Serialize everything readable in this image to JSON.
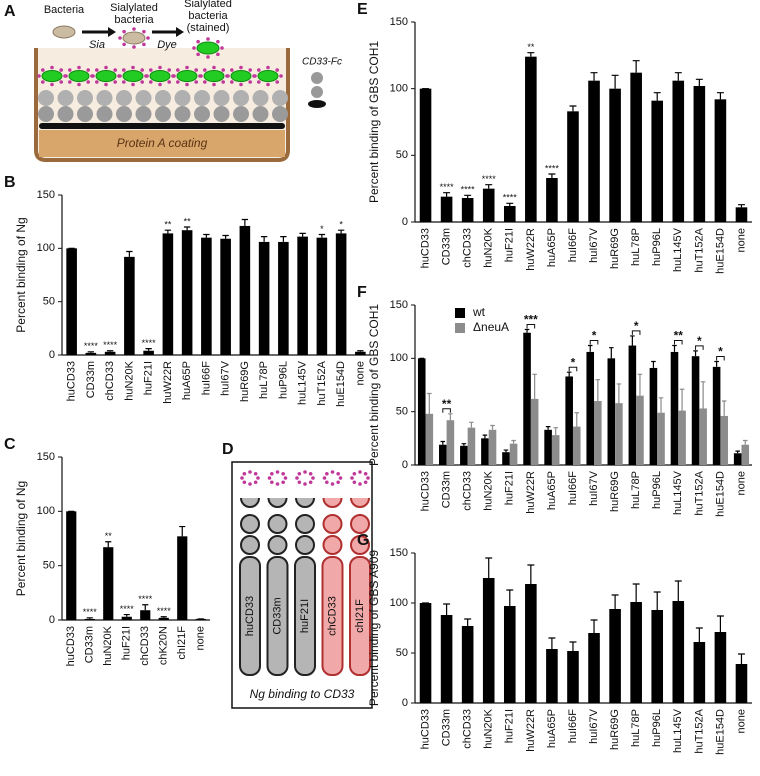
{
  "panel_a": {
    "letter": "A",
    "bacteria": "Bacteria",
    "sialylated": [
      "Sialylated",
      "bacteria"
    ],
    "stained": [
      "Sialylated",
      "bacteria",
      "(stained)"
    ],
    "sia": "Sia",
    "dye": "Dye",
    "fc": "CD33-Fc",
    "coating": "Protein A coating"
  },
  "panel_d": {
    "letter": "D",
    "constructs": [
      "huCD33",
      "CD33m",
      "huF21I",
      "chCD33",
      "chI21F"
    ],
    "caption": "Ng binding to CD33"
  },
  "chart_data": [
    {
      "type": "bar",
      "panel": "B",
      "ylabel": "Percent binding of Ng",
      "color": "#000000",
      "categories": [
        "huCD33",
        "CD33m",
        "chCD33",
        "huN20K",
        "huF21I",
        "huW22R",
        "huA65P",
        "huI66F",
        "huI67V",
        "huR69G",
        "huL78P",
        "huP96L",
        "huL145V",
        "huT152A",
        "huE154D",
        "none"
      ],
      "values": [
        100,
        2,
        3,
        92,
        4,
        114,
        117,
        110,
        109,
        121,
        106,
        106,
        111,
        110,
        114,
        3
      ],
      "errors": [
        0,
        1,
        1,
        5,
        2,
        3,
        3,
        3,
        3,
        6,
        5,
        5,
        3,
        3,
        3,
        1
      ],
      "stars": [
        null,
        "****",
        "****",
        null,
        "****",
        "**",
        "**",
        null,
        null,
        null,
        null,
        null,
        null,
        "*",
        "*",
        null
      ],
      "ylim": [
        0,
        150
      ],
      "yticks": [
        0,
        50,
        100,
        150
      ]
    },
    {
      "type": "bar",
      "panel": "C",
      "ylabel": "Percent binding of Ng",
      "color": "#000000",
      "categories": [
        "huCD33",
        "CD33m",
        "huN20K",
        "huF21I",
        "chCD33",
        "chK20N",
        "chI21F",
        "none"
      ],
      "values": [
        100,
        1,
        67,
        3,
        9,
        2,
        77,
        1
      ],
      "errors": [
        0,
        1,
        5,
        2,
        5,
        1,
        9,
        0
      ],
      "stars": [
        null,
        "****",
        "**",
        "****",
        "****",
        "****",
        null,
        null
      ],
      "ylim": [
        0,
        150
      ],
      "yticks": [
        0,
        50,
        100,
        150
      ]
    },
    {
      "type": "bar",
      "panel": "E",
      "ylabel": "Percent binding of GBS COH1",
      "color": "#000000",
      "categories": [
        "huCD33",
        "CD33m",
        "chCD33",
        "huN20K",
        "huF21I",
        "huW22R",
        "huA65P",
        "huI66F",
        "huI67V",
        "huR69G",
        "huL78P",
        "huP96L",
        "huL145V",
        "huT152A",
        "huE154D",
        "none"
      ],
      "values": [
        100,
        19,
        18,
        25,
        12,
        124,
        33,
        83,
        106,
        100,
        112,
        91,
        106,
        102,
        92,
        11
      ],
      "errors": [
        0,
        3,
        2,
        3,
        2,
        3,
        3,
        4,
        6,
        10,
        9,
        6,
        6,
        5,
        5,
        2
      ],
      "stars": [
        null,
        "****",
        "****",
        "****",
        "****",
        "**",
        "****",
        null,
        null,
        null,
        null,
        null,
        null,
        null,
        null,
        null
      ],
      "ylim": [
        0,
        150
      ],
      "yticks": [
        0,
        50,
        100,
        150
      ]
    },
    {
      "type": "bar",
      "panel": "F",
      "ylabel": "Percent binding of GBS COH1",
      "categories": [
        "huCD33",
        "CD33m",
        "chCD33",
        "huN20K",
        "huF21I",
        "huW22R",
        "huA65P",
        "huI66F",
        "huI67V",
        "huR69G",
        "huL78P",
        "huP96L",
        "huL145V",
        "huT152A",
        "huE154D",
        "none"
      ],
      "series": [
        {
          "name": "wt",
          "color": "#000000",
          "values": [
            100,
            19,
            18,
            25,
            12,
            124,
            33,
            83,
            106,
            100,
            112,
            91,
            106,
            102,
            92,
            11
          ],
          "errors": [
            0,
            3,
            2,
            3,
            2,
            3,
            3,
            4,
            6,
            10,
            9,
            6,
            6,
            5,
            5,
            2
          ]
        },
        {
          "name": "ΔneuA",
          "color": "#8c8c8c",
          "values": [
            48,
            42,
            35,
            33,
            20,
            62,
            28,
            36,
            60,
            58,
            65,
            49,
            51,
            53,
            46,
            19
          ],
          "errors": [
            19,
            6,
            5,
            4,
            3,
            23,
            7,
            13,
            20,
            18,
            20,
            14,
            20,
            25,
            14,
            4
          ]
        }
      ],
      "stars": [
        null,
        "**",
        null,
        null,
        null,
        "***",
        null,
        "*",
        "*",
        null,
        "*",
        null,
        "**",
        "*",
        "*",
        null
      ],
      "ylim": [
        0,
        150
      ],
      "yticks": [
        0,
        50,
        100,
        150
      ],
      "legend": "upper-left"
    },
    {
      "type": "bar",
      "panel": "G",
      "ylabel": "Percent binding of GBS A909",
      "color": "#000000",
      "categories": [
        "huCD33",
        "CD33m",
        "chCD33",
        "huN20K",
        "huF21I",
        "huW22R",
        "huA65P",
        "huI66F",
        "huI67V",
        "huR69G",
        "huL78P",
        "huP96L",
        "huL145V",
        "huT152A",
        "huE154D",
        "none"
      ],
      "values": [
        100,
        88,
        77,
        125,
        97,
        119,
        54,
        52,
        70,
        94,
        101,
        93,
        102,
        61,
        71,
        39
      ],
      "errors": [
        0,
        11,
        7,
        20,
        16,
        19,
        11,
        9,
        13,
        14,
        18,
        18,
        20,
        14,
        16,
        10
      ],
      "ylim": [
        0,
        150
      ],
      "yticks": [
        0,
        50,
        100,
        150
      ]
    }
  ]
}
